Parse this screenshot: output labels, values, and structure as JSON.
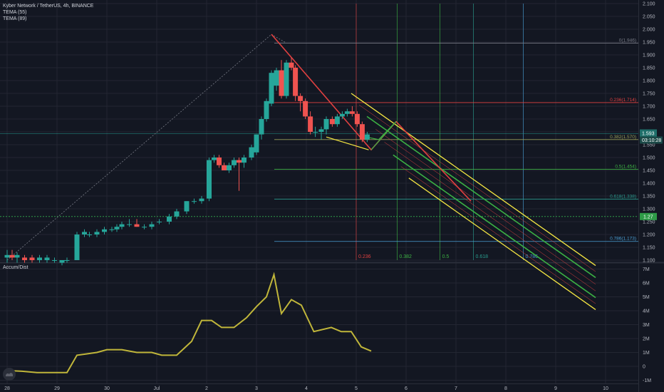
{
  "header": {
    "symbol_line": "Kyber Network / TetherUS, 4h, BINANCE",
    "indicator1": "TEMA (55)",
    "indicator2": "TEMA (89)"
  },
  "subpanel": {
    "title": "Accum/Dist"
  },
  "colors": {
    "background": "#131722",
    "grid": "#232632",
    "up": "#26a69a",
    "down": "#ef5350",
    "channel_outer": "#f5e642",
    "channel_mid": "#3cb043",
    "fib_red": "#e04040",
    "accum": "#c0b63a",
    "badge_green": "#2e9b47",
    "badge_teal": "#1f6f6a"
  },
  "price_badges": {
    "current": "1.593",
    "countdown": "03:10:28",
    "hline": "1.27"
  },
  "price_axis": {
    "ticks": [
      "2.100",
      "2.050",
      "2.000",
      "1.950",
      "1.900",
      "1.850",
      "1.800",
      "1.750",
      "1.700",
      "1.650",
      "1.600",
      "1.550",
      "1.500",
      "1.450",
      "1.400",
      "1.350",
      "1.300",
      "1.250",
      "1.200",
      "1.150",
      "1.100"
    ],
    "values": [
      2.1,
      2.05,
      2.0,
      1.95,
      1.9,
      1.85,
      1.8,
      1.75,
      1.7,
      1.65,
      1.6,
      1.55,
      1.5,
      1.45,
      1.4,
      1.35,
      1.3,
      1.25,
      1.2,
      1.15,
      1.1
    ]
  },
  "volume_axis": {
    "ticks": [
      "7M",
      "6M",
      "5M",
      "4M",
      "3M",
      "2M",
      "1M",
      "0",
      "-1M"
    ],
    "values": [
      7,
      6,
      5,
      4,
      3,
      2,
      1,
      0,
      -1
    ]
  },
  "time_axis": {
    "labels": [
      "28",
      "29",
      "30",
      "Jul",
      "2",
      "3",
      "4",
      "5",
      "6",
      "7",
      "8",
      "9",
      "10"
    ],
    "values": [
      0,
      1,
      2,
      3,
      4,
      5,
      6,
      7,
      8,
      9,
      10,
      11,
      12
    ]
  },
  "fib_retracement": {
    "levels": [
      {
        "label": "0(1.946)",
        "value": 1.946,
        "color": "#787b86"
      },
      {
        "label": "0.236(1.714)",
        "value": 1.714,
        "color": "#e04040"
      },
      {
        "label": "0.382(1.570)",
        "value": 1.57,
        "color": "#9aa05a"
      },
      {
        "label": "0.5(1.454)",
        "value": 1.454,
        "color": "#3cb043"
      },
      {
        "label": "0.618(1.338)",
        "value": 1.338,
        "color": "#2a9d8f"
      },
      {
        "label": "0.786(1.173)",
        "value": 1.173,
        "color": "#4a9fd4"
      }
    ]
  },
  "fib_timezones": [
    {
      "label": "0.236",
      "t": 7.0,
      "color": "#e04040"
    },
    {
      "label": "0.382",
      "t": 7.82,
      "color": "#3cb043"
    },
    {
      "label": "0.5",
      "t": 8.68,
      "color": "#3cb043"
    },
    {
      "label": "0.618",
      "t": 9.35,
      "color": "#2a9d8f"
    },
    {
      "label": "0.786",
      "t": 10.35,
      "color": "#4a9fd4"
    }
  ],
  "chart_data": {
    "type": "candlestick",
    "title": "Kyber Network / TetherUS, 4h, BINANCE",
    "x_axis_labels": [
      "28",
      "29",
      "30",
      "Jul",
      "2",
      "3",
      "4",
      "5",
      "6",
      "7",
      "8",
      "9",
      "10"
    ],
    "ylim": [
      1.1,
      2.1
    ],
    "candles": [
      {
        "t": 0.0,
        "o": 1.11,
        "h": 1.14,
        "l": 1.09,
        "c": 1.12
      },
      {
        "t": 0.1,
        "o": 1.12,
        "h": 1.14,
        "l": 1.1,
        "c": 1.11
      },
      {
        "t": 0.2,
        "o": 1.11,
        "h": 1.13,
        "l": 1.09,
        "c": 1.12
      },
      {
        "t": 0.35,
        "o": 1.11,
        "h": 1.12,
        "l": 1.09,
        "c": 1.1
      },
      {
        "t": 0.5,
        "o": 1.11,
        "h": 1.12,
        "l": 1.09,
        "c": 1.1
      },
      {
        "t": 0.65,
        "o": 1.1,
        "h": 1.12,
        "l": 1.09,
        "c": 1.11
      },
      {
        "t": 0.8,
        "o": 1.1,
        "h": 1.12,
        "l": 1.09,
        "c": 1.11
      },
      {
        "t": 0.95,
        "o": 1.1,
        "h": 1.11,
        "l": 1.09,
        "c": 1.1
      },
      {
        "t": 1.1,
        "o": 1.09,
        "h": 1.1,
        "l": 1.08,
        "c": 1.1
      },
      {
        "t": 1.2,
        "o": 1.1,
        "h": 1.11,
        "l": 1.09,
        "c": 1.1
      },
      {
        "t": 1.4,
        "o": 1.1,
        "h": 1.21,
        "l": 1.1,
        "c": 1.2
      },
      {
        "t": 1.55,
        "o": 1.2,
        "h": 1.22,
        "l": 1.19,
        "c": 1.21
      },
      {
        "t": 1.65,
        "o": 1.2,
        "h": 1.21,
        "l": 1.19,
        "c": 1.2
      },
      {
        "t": 1.8,
        "o": 1.2,
        "h": 1.22,
        "l": 1.19,
        "c": 1.21
      },
      {
        "t": 1.95,
        "o": 1.21,
        "h": 1.23,
        "l": 1.2,
        "c": 1.22
      },
      {
        "t": 2.1,
        "o": 1.22,
        "h": 1.23,
        "l": 1.21,
        "c": 1.22
      },
      {
        "t": 2.2,
        "o": 1.22,
        "h": 1.24,
        "l": 1.21,
        "c": 1.23
      },
      {
        "t": 2.3,
        "o": 1.23,
        "h": 1.25,
        "l": 1.22,
        "c": 1.24
      },
      {
        "t": 2.45,
        "o": 1.24,
        "h": 1.26,
        "l": 1.23,
        "c": 1.24
      },
      {
        "t": 2.6,
        "o": 1.24,
        "h": 1.26,
        "l": 1.23,
        "c": 1.23
      },
      {
        "t": 2.75,
        "o": 1.23,
        "h": 1.24,
        "l": 1.22,
        "c": 1.23
      },
      {
        "t": 2.9,
        "o": 1.23,
        "h": 1.25,
        "l": 1.22,
        "c": 1.24
      },
      {
        "t": 3.05,
        "o": 1.25,
        "h": 1.26,
        "l": 1.24,
        "c": 1.25
      },
      {
        "t": 3.25,
        "o": 1.25,
        "h": 1.28,
        "l": 1.24,
        "c": 1.27
      },
      {
        "t": 3.4,
        "o": 1.27,
        "h": 1.3,
        "l": 1.26,
        "c": 1.29
      },
      {
        "t": 3.6,
        "o": 1.29,
        "h": 1.33,
        "l": 1.28,
        "c": 1.33
      },
      {
        "t": 3.75,
        "o": 1.33,
        "h": 1.34,
        "l": 1.32,
        "c": 1.33
      },
      {
        "t": 3.9,
        "o": 1.33,
        "h": 1.35,
        "l": 1.32,
        "c": 1.34
      },
      {
        "t": 4.05,
        "o": 1.34,
        "h": 1.5,
        "l": 1.33,
        "c": 1.49
      },
      {
        "t": 4.15,
        "o": 1.49,
        "h": 1.51,
        "l": 1.48,
        "c": 1.5
      },
      {
        "t": 4.25,
        "o": 1.5,
        "h": 1.51,
        "l": 1.46,
        "c": 1.47
      },
      {
        "t": 4.35,
        "o": 1.47,
        "h": 1.48,
        "l": 1.45,
        "c": 1.45
      },
      {
        "t": 4.45,
        "o": 1.45,
        "h": 1.48,
        "l": 1.44,
        "c": 1.47
      },
      {
        "t": 4.55,
        "o": 1.47,
        "h": 1.5,
        "l": 1.46,
        "c": 1.49
      },
      {
        "t": 4.65,
        "o": 1.49,
        "h": 1.5,
        "l": 1.37,
        "c": 1.48
      },
      {
        "t": 4.75,
        "o": 1.48,
        "h": 1.51,
        "l": 1.46,
        "c": 1.5
      },
      {
        "t": 4.9,
        "o": 1.5,
        "h": 1.55,
        "l": 1.49,
        "c": 1.54
      },
      {
        "t": 5.0,
        "o": 1.52,
        "h": 1.59,
        "l": 1.51,
        "c": 1.59
      },
      {
        "t": 5.1,
        "o": 1.59,
        "h": 1.66,
        "l": 1.57,
        "c": 1.65
      },
      {
        "t": 5.2,
        "o": 1.65,
        "h": 1.73,
        "l": 1.64,
        "c": 1.72
      },
      {
        "t": 5.3,
        "o": 1.71,
        "h": 1.84,
        "l": 1.7,
        "c": 1.83
      },
      {
        "t": 5.4,
        "o": 1.78,
        "h": 1.85,
        "l": 1.76,
        "c": 1.84
      },
      {
        "t": 5.5,
        "o": 1.84,
        "h": 1.88,
        "l": 1.73,
        "c": 1.74
      },
      {
        "t": 5.6,
        "o": 1.74,
        "h": 1.88,
        "l": 1.73,
        "c": 1.87
      },
      {
        "t": 5.7,
        "o": 1.87,
        "h": 1.89,
        "l": 1.84,
        "c": 1.85
      },
      {
        "t": 5.78,
        "o": 1.85,
        "h": 1.86,
        "l": 1.72,
        "c": 1.74
      },
      {
        "t": 5.88,
        "o": 1.74,
        "h": 1.75,
        "l": 1.68,
        "c": 1.72
      },
      {
        "t": 5.98,
        "o": 1.72,
        "h": 1.73,
        "l": 1.65,
        "c": 1.66
      },
      {
        "t": 6.08,
        "o": 1.66,
        "h": 1.68,
        "l": 1.59,
        "c": 1.6
      },
      {
        "t": 6.18,
        "o": 1.6,
        "h": 1.62,
        "l": 1.58,
        "c": 1.6
      },
      {
        "t": 6.3,
        "o": 1.6,
        "h": 1.62,
        "l": 1.57,
        "c": 1.61
      },
      {
        "t": 6.4,
        "o": 1.61,
        "h": 1.66,
        "l": 1.59,
        "c": 1.65
      },
      {
        "t": 6.52,
        "o": 1.65,
        "h": 1.66,
        "l": 1.62,
        "c": 1.63
      },
      {
        "t": 6.62,
        "o": 1.63,
        "h": 1.67,
        "l": 1.62,
        "c": 1.66
      },
      {
        "t": 6.72,
        "o": 1.66,
        "h": 1.68,
        "l": 1.65,
        "c": 1.67
      },
      {
        "t": 6.82,
        "o": 1.67,
        "h": 1.69,
        "l": 1.66,
        "c": 1.68
      },
      {
        "t": 6.92,
        "o": 1.68,
        "h": 1.7,
        "l": 1.66,
        "c": 1.67
      },
      {
        "t": 7.02,
        "o": 1.67,
        "h": 1.68,
        "l": 1.62,
        "c": 1.63
      },
      {
        "t": 7.12,
        "o": 1.63,
        "h": 1.64,
        "l": 1.56,
        "c": 1.57
      },
      {
        "t": 7.22,
        "o": 1.57,
        "h": 1.6,
        "l": 1.56,
        "c": 1.59
      }
    ],
    "accum_dist": {
      "name": "Accum/Dist",
      "t": [
        0.0,
        0.3,
        0.6,
        0.9,
        1.2,
        1.4,
        1.6,
        1.8,
        2.0,
        2.3,
        2.6,
        2.9,
        3.1,
        3.4,
        3.7,
        3.9,
        4.1,
        4.3,
        4.55,
        4.8,
        5.0,
        5.2,
        5.35,
        5.5,
        5.7,
        5.9,
        6.15,
        6.5,
        6.7,
        6.9,
        7.1,
        7.3
      ],
      "values": [
        -0.3,
        -0.35,
        -0.45,
        -0.45,
        -0.45,
        0.8,
        0.9,
        1.0,
        1.2,
        1.2,
        1.0,
        1.0,
        0.8,
        0.8,
        1.8,
        3.3,
        3.3,
        2.8,
        2.8,
        3.5,
        4.3,
        5.0,
        6.6,
        3.8,
        4.8,
        4.4,
        2.5,
        2.8,
        2.5,
        2.5,
        1.4,
        1.1
      ]
    }
  }
}
